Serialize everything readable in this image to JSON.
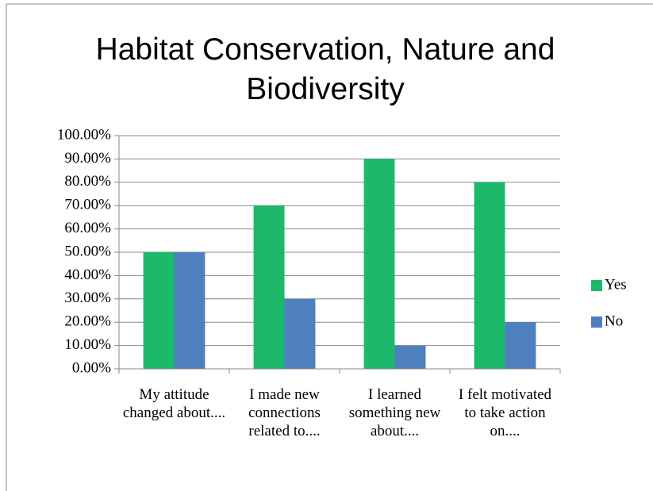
{
  "chart_data": {
    "type": "bar",
    "title": "Habitat Conservation, Nature and Biodiversity",
    "categories": [
      "My attitude changed about....",
      "I made new connections related to....",
      "I learned something new about....",
      "I felt motivated to take action on...."
    ],
    "series": [
      {
        "name": "Yes",
        "color": "#1cb96b",
        "values": [
          50,
          70,
          90,
          80
        ]
      },
      {
        "name": "No",
        "color": "#4f7fbe",
        "values": [
          50,
          30,
          10,
          20
        ]
      }
    ],
    "ylim": [
      0,
      100
    ],
    "yticks": [
      {
        "value": 0,
        "label": "0.00%"
      },
      {
        "value": 10,
        "label": "10.00%"
      },
      {
        "value": 20,
        "label": "20.00%"
      },
      {
        "value": 30,
        "label": "30.00%"
      },
      {
        "value": 40,
        "label": "40.00%"
      },
      {
        "value": 50,
        "label": "50.00%"
      },
      {
        "value": 60,
        "label": "60.00%"
      },
      {
        "value": 70,
        "label": "70.00%"
      },
      {
        "value": 80,
        "label": "80.00%"
      },
      {
        "value": 90,
        "label": "90.00%"
      },
      {
        "value": 100,
        "label": "100.00%"
      }
    ],
    "grid": true,
    "legend": "right"
  }
}
